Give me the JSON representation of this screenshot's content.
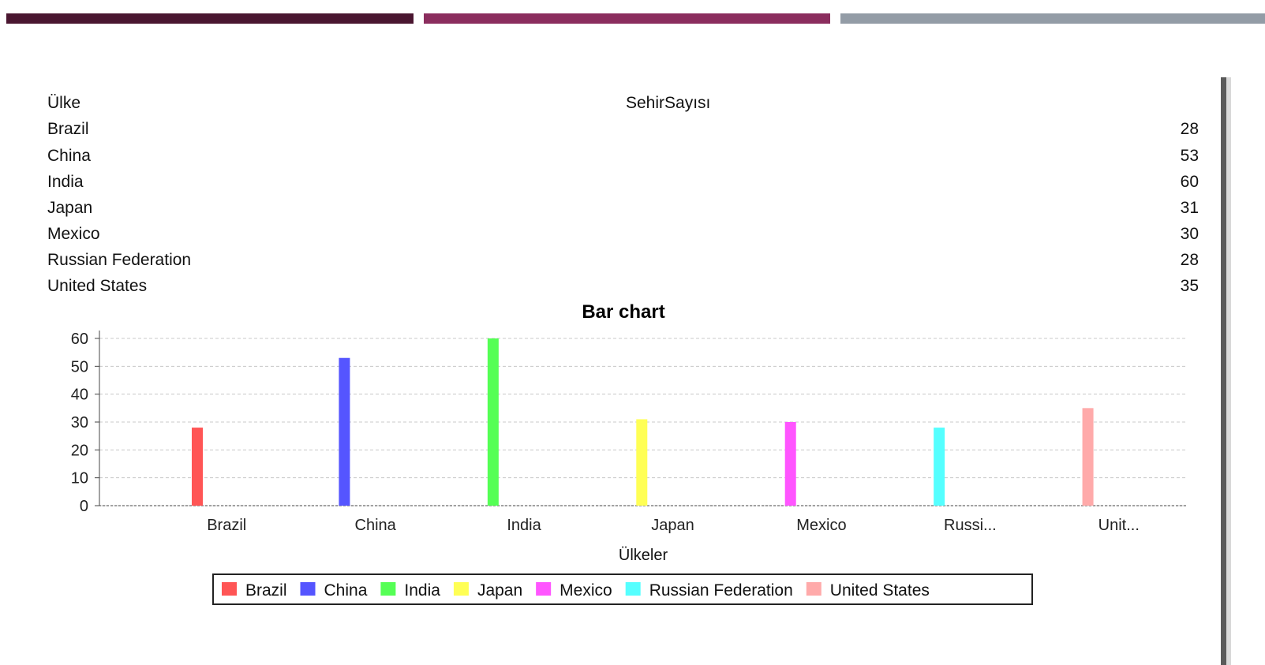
{
  "decor": {
    "bar_colors": [
      "#4a1630",
      "#8b2d5e",
      "#939ca6"
    ]
  },
  "table": {
    "headers": [
      "Ülke",
      "SehirSayısı"
    ],
    "rows": [
      {
        "name": "Brazil",
        "value": "28"
      },
      {
        "name": "China",
        "value": "53"
      },
      {
        "name": "India",
        "value": "60"
      },
      {
        "name": "Japan",
        "value": "31"
      },
      {
        "name": "Mexico",
        "value": "30"
      },
      {
        "name": "Russian Federation",
        "value": "28"
      },
      {
        "name": "United States",
        "value": "35"
      }
    ]
  },
  "chart_data": {
    "type": "bar",
    "title": "Bar chart",
    "xlabel": "Ülkeler",
    "ylabel": "",
    "ylim": [
      0,
      60
    ],
    "yticks": [
      0,
      10,
      20,
      30,
      40,
      50,
      60
    ],
    "grid": true,
    "legend_position": "bottom",
    "categories": [
      "Brazil",
      "China",
      "India",
      "Japan",
      "Mexico",
      "Russi...",
      "Unit..."
    ],
    "series": [
      {
        "name": "Brazil",
        "color": "#ff5555",
        "value": 28
      },
      {
        "name": "China",
        "color": "#5555ff",
        "value": 53
      },
      {
        "name": "India",
        "color": "#55ff55",
        "value": 60
      },
      {
        "name": "Japan",
        "color": "#ffff55",
        "value": 31
      },
      {
        "name": "Mexico",
        "color": "#ff55ff",
        "value": 30
      },
      {
        "name": "Russian Federation",
        "color": "#55ffff",
        "value": 28
      },
      {
        "name": "United States",
        "color": "#ffaaaa",
        "value": 35
      }
    ]
  }
}
